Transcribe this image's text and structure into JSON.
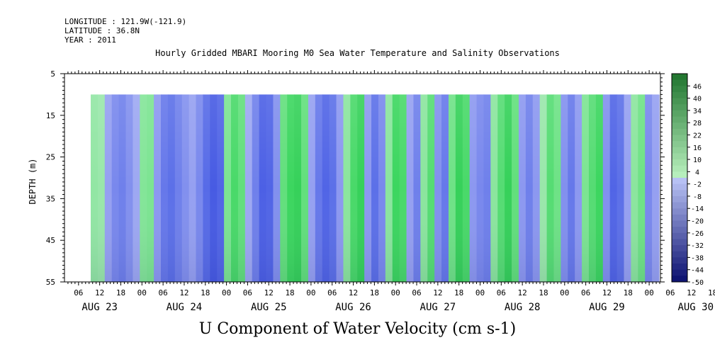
{
  "header": {
    "longitude": "LONGITUDE : 121.9W(-121.9)",
    "latitude": "LATITUDE : 36.8N",
    "year": "YEAR : 2011"
  },
  "title": "Hourly Gridded MBARI Mooring M0 Sea Water Temperature and Salinity Observations",
  "bottom_title": "U Component of Water Velocity (cm s-1)",
  "colors": {
    "green_strong": "#2fd14d",
    "green_light": "#8fe8a1",
    "blue_light": "#9aa6f4",
    "blue_strong": "#4a63e6"
  },
  "chart_data": {
    "type": "heatmap",
    "title": "Hourly Gridded MBARI Mooring M0 Sea Water Temperature and Salinity Observations",
    "xlabel": "",
    "ylabel": "DEPTH (m)",
    "y_ticks": [
      "5",
      "15",
      "25",
      "35",
      "45",
      "55"
    ],
    "ylim": [
      55,
      5
    ],
    "x_hour_ticks": [
      "06",
      "12",
      "18",
      "00",
      "06",
      "12",
      "18",
      "00",
      "06",
      "12",
      "18",
      "00",
      "06",
      "12",
      "18",
      "00",
      "06",
      "12",
      "18",
      "00",
      "06",
      "12",
      "18",
      "00",
      "06",
      "12",
      "18",
      "00",
      "06",
      "12",
      "18",
      "00"
    ],
    "x_day_labels": [
      "AUG 23",
      "AUG 24",
      "AUG 25",
      "AUG 26",
      "AUG 27",
      "AUG 28",
      "AUG 29",
      "AUG 30"
    ],
    "colorbar_labels": [
      "46",
      "40",
      "34",
      "28",
      "22",
      "16",
      "10",
      "4",
      "-2",
      "-8",
      "-14",
      "-20",
      "-26",
      "-32",
      "-38",
      "-44",
      "-50"
    ],
    "colorbar_range": [
      -50,
      52
    ],
    "data_depth_range": [
      10,
      55
    ],
    "column_values": [
      3,
      2,
      -6,
      -12,
      -14,
      -10,
      -4,
      5,
      6,
      -8,
      -16,
      -18,
      -14,
      -10,
      -6,
      -12,
      -20,
      -26,
      -22,
      6,
      14,
      10,
      -4,
      -14,
      -24,
      -22,
      -10,
      10,
      16,
      18,
      10,
      -6,
      -16,
      -22,
      -18,
      -8,
      4,
      14,
      18,
      -8,
      -18,
      -12,
      4,
      16,
      14,
      -6,
      -14,
      4,
      12,
      -10,
      -16,
      8,
      18,
      14,
      -8,
      -12,
      -14,
      4,
      12,
      18,
      10,
      -8,
      -14,
      -8,
      2,
      12,
      8,
      -10,
      -16,
      -8,
      6,
      12,
      16,
      -10,
      -22,
      -18,
      -6,
      4,
      8,
      -12,
      -6
    ]
  }
}
